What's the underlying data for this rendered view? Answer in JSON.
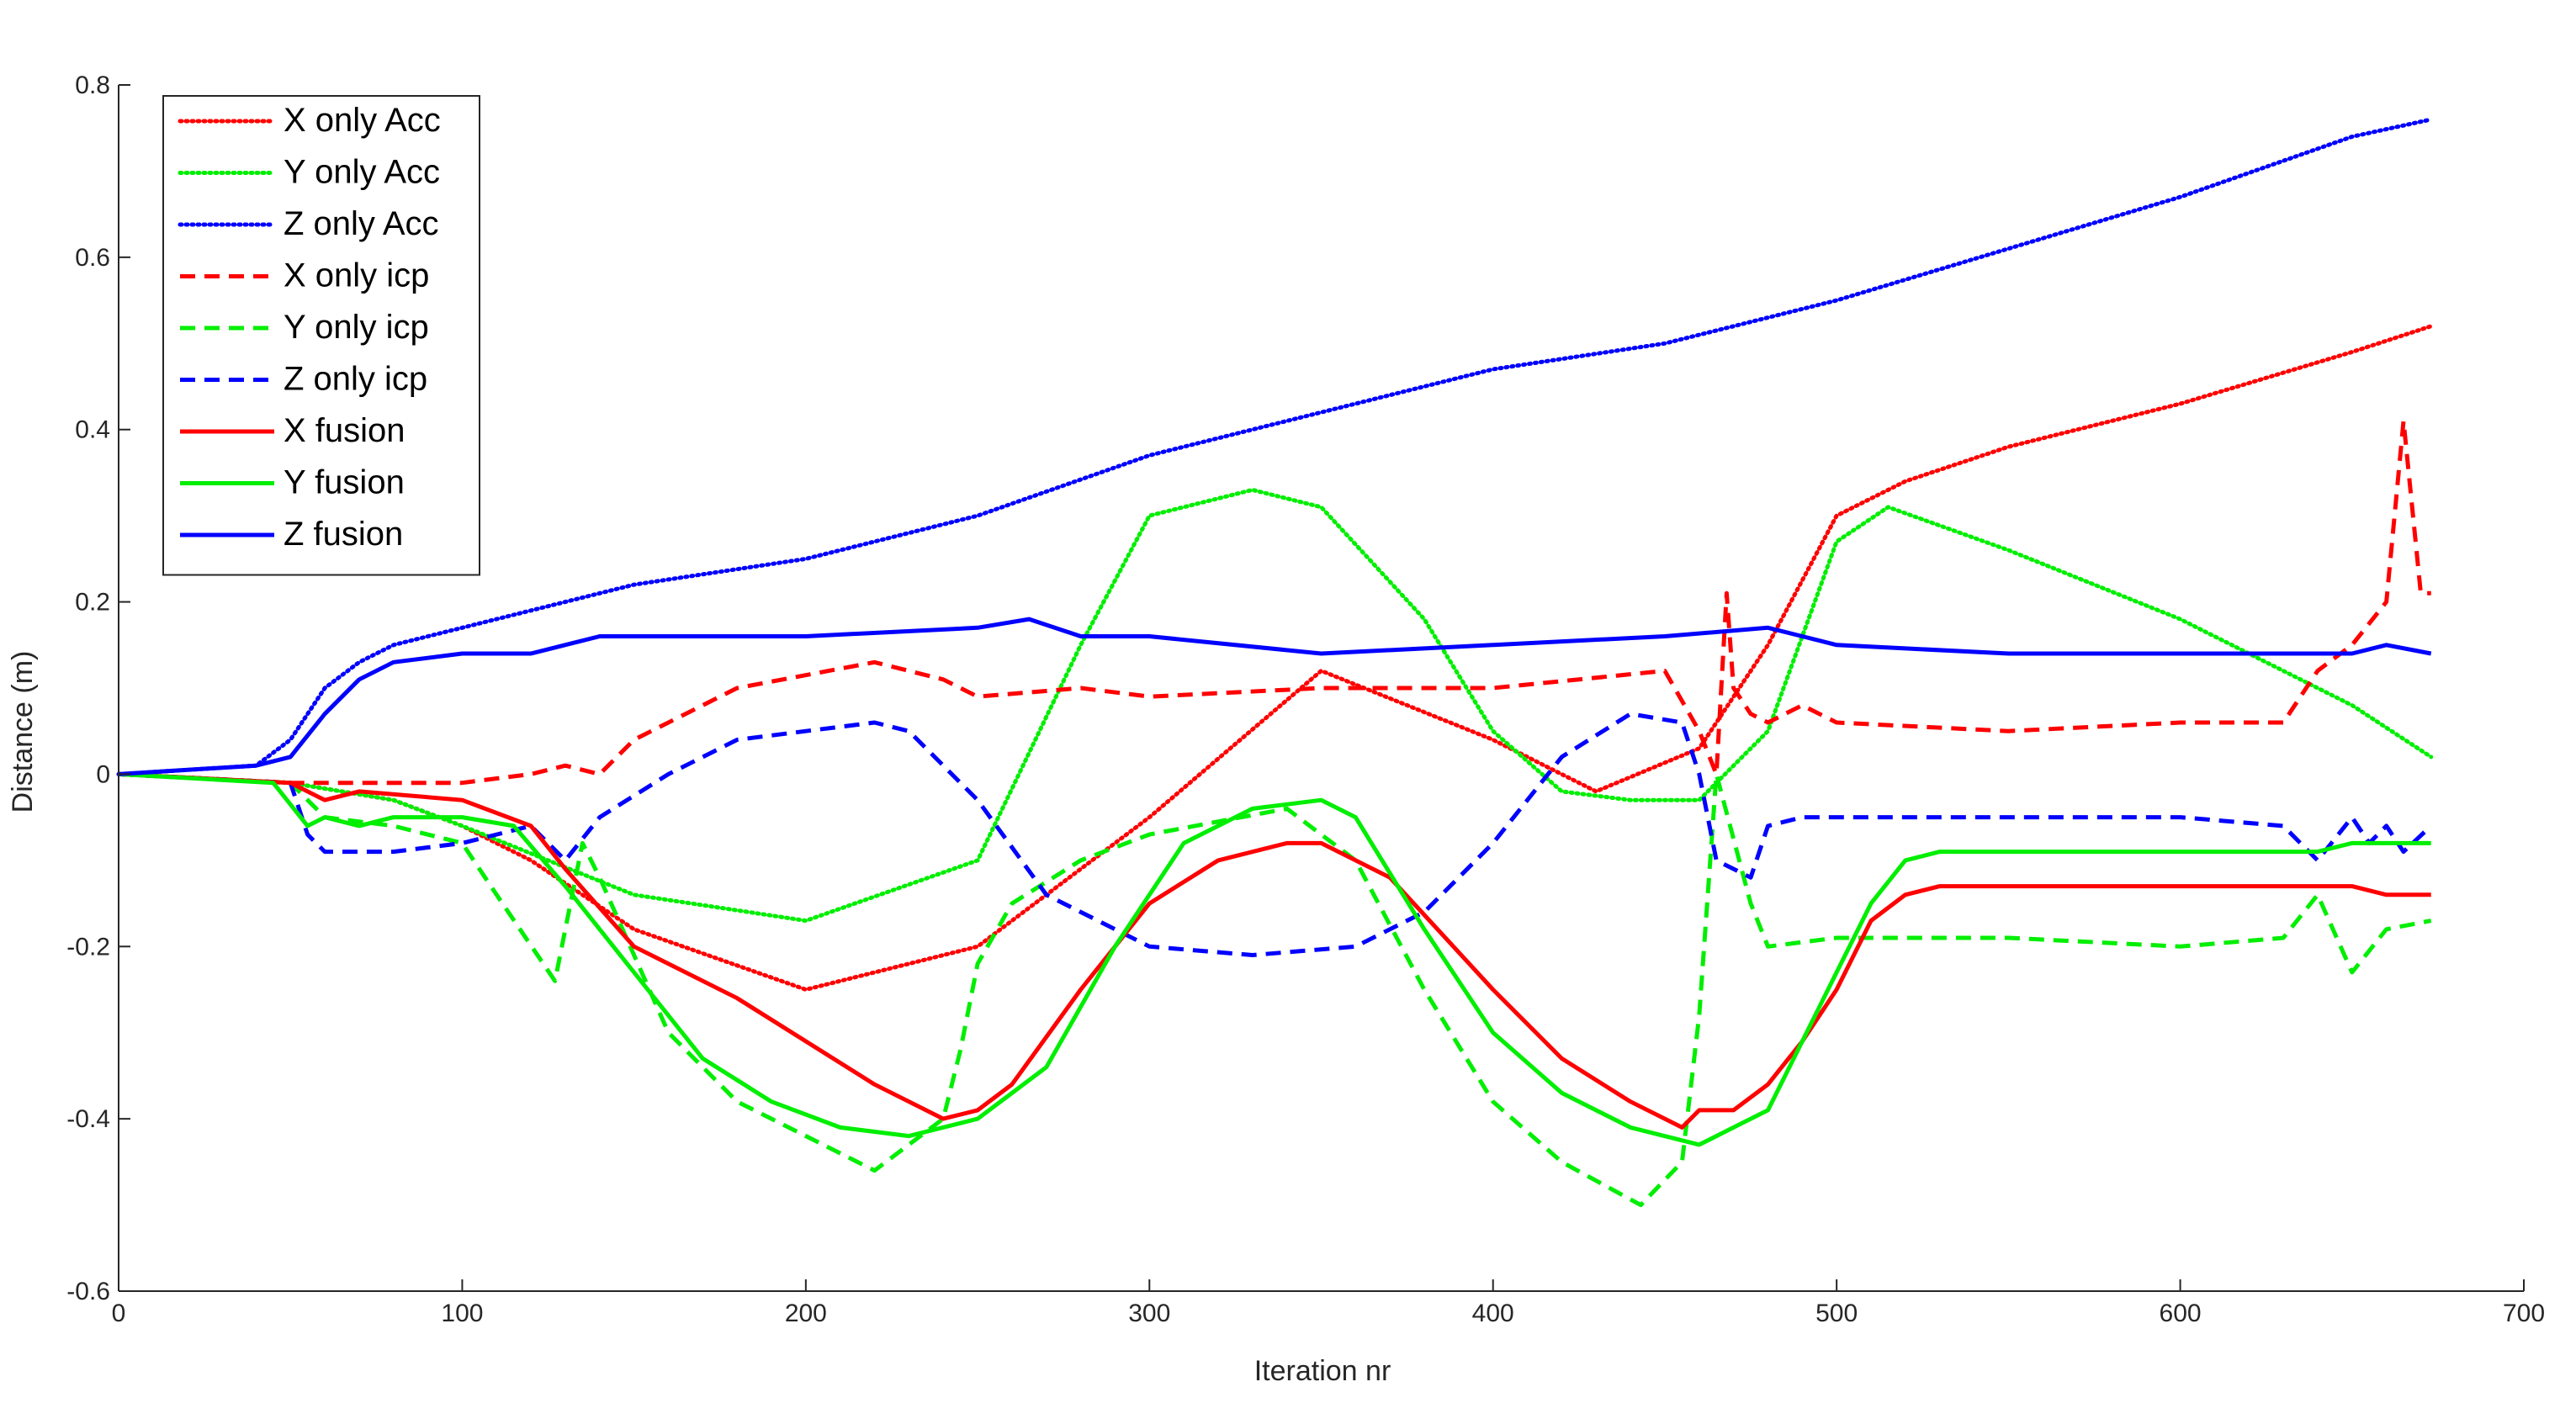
{
  "chart_data": {
    "type": "line",
    "title": "",
    "xlabel": "Iteration nr",
    "ylabel": "Distance (m)",
    "xlim": [
      0,
      700
    ],
    "ylim": [
      -0.6,
      0.8
    ],
    "x_ticks": [
      0,
      100,
      200,
      300,
      400,
      500,
      600,
      700
    ],
    "y_ticks": [
      -0.6,
      -0.4,
      -0.2,
      0,
      0.2,
      0.4,
      0.6,
      0.8
    ],
    "x_tick_labels": [
      "0",
      "100",
      "200",
      "300",
      "400",
      "500",
      "600",
      "700"
    ],
    "y_tick_labels": [
      "-0.6",
      "-0.4",
      "-0.2",
      "0",
      "0.2",
      "0.4",
      "0.6",
      "0.8"
    ],
    "grid": false,
    "legend_position": "top-left",
    "series": [
      {
        "name": "X only Acc",
        "color": "#ff0000",
        "style": "dotted",
        "x": [
          0,
          50,
          80,
          100,
          120,
          150,
          200,
          250,
          300,
          350,
          400,
          430,
          460,
          480,
          500,
          520,
          550,
          600,
          650,
          673
        ],
        "y": [
          0,
          -0.01,
          -0.03,
          -0.06,
          -0.1,
          -0.18,
          -0.25,
          -0.2,
          -0.05,
          0.12,
          0.04,
          -0.02,
          0.03,
          0.15,
          0.3,
          0.34,
          0.38,
          0.43,
          0.49,
          0.52
        ]
      },
      {
        "name": "Y only Acc",
        "color": "#00ee00",
        "style": "dotted",
        "x": [
          0,
          50,
          80,
          100,
          150,
          200,
          250,
          280,
          300,
          330,
          350,
          380,
          400,
          420,
          440,
          460,
          480,
          500,
          515,
          550,
          600,
          650,
          673
        ],
        "y": [
          0,
          -0.01,
          -0.03,
          -0.06,
          -0.14,
          -0.17,
          -0.1,
          0.15,
          0.3,
          0.33,
          0.31,
          0.18,
          0.05,
          -0.02,
          -0.03,
          -0.03,
          0.05,
          0.27,
          0.31,
          0.26,
          0.18,
          0.08,
          0.02
        ]
      },
      {
        "name": "Z only Acc",
        "color": "#0000ff",
        "style": "dotted",
        "x": [
          0,
          40,
          50,
          60,
          70,
          80,
          100,
          150,
          200,
          250,
          300,
          350,
          400,
          450,
          500,
          550,
          600,
          650,
          673
        ],
        "y": [
          0,
          0.01,
          0.04,
          0.1,
          0.13,
          0.15,
          0.17,
          0.22,
          0.25,
          0.3,
          0.37,
          0.42,
          0.47,
          0.5,
          0.55,
          0.61,
          0.67,
          0.74,
          0.76
        ]
      },
      {
        "name": "X only icp",
        "color": "#ff0000",
        "style": "dashed",
        "x": [
          0,
          50,
          100,
          120,
          130,
          140,
          150,
          180,
          220,
          240,
          250,
          280,
          300,
          350,
          400,
          450,
          460,
          465,
          468,
          470,
          475,
          480,
          490,
          500,
          550,
          600,
          630,
          640,
          650,
          660,
          665,
          670,
          673
        ],
        "y": [
          0,
          -0.01,
          -0.01,
          0.0,
          0.01,
          0.0,
          0.04,
          0.1,
          0.13,
          0.11,
          0.09,
          0.1,
          0.09,
          0.1,
          0.1,
          0.12,
          0.05,
          0.0,
          0.21,
          0.1,
          0.07,
          0.06,
          0.08,
          0.06,
          0.05,
          0.06,
          0.06,
          0.12,
          0.15,
          0.2,
          0.41,
          0.21,
          0.21
        ]
      },
      {
        "name": "Y only icp",
        "color": "#00ee00",
        "style": "dashed",
        "x": [
          0,
          50,
          60,
          80,
          100,
          110,
          127,
          135,
          140,
          160,
          180,
          200,
          220,
          240,
          245,
          250,
          260,
          280,
          300,
          340,
          360,
          380,
          400,
          420,
          443,
          455,
          460,
          465,
          475,
          480,
          500,
          550,
          600,
          630,
          640,
          650,
          660,
          673
        ],
        "y": [
          0,
          -0.01,
          -0.05,
          -0.06,
          -0.08,
          -0.14,
          -0.24,
          -0.08,
          -0.12,
          -0.3,
          -0.38,
          -0.42,
          -0.46,
          -0.4,
          -0.32,
          -0.22,
          -0.15,
          -0.1,
          -0.07,
          -0.04,
          -0.1,
          -0.25,
          -0.38,
          -0.45,
          -0.5,
          -0.45,
          -0.28,
          0.0,
          -0.15,
          -0.2,
          -0.19,
          -0.19,
          -0.2,
          -0.19,
          -0.14,
          -0.23,
          -0.18,
          -0.17
        ]
      },
      {
        "name": "Z only icp",
        "color": "#0000ff",
        "style": "dashed",
        "x": [
          0,
          50,
          55,
          60,
          80,
          100,
          120,
          130,
          140,
          160,
          180,
          200,
          220,
          230,
          250,
          270,
          300,
          330,
          360,
          380,
          400,
          420,
          440,
          455,
          460,
          465,
          475,
          480,
          490,
          550,
          600,
          630,
          640,
          650,
          655,
          660,
          665,
          673
        ],
        "y": [
          0,
          -0.01,
          -0.07,
          -0.09,
          -0.09,
          -0.08,
          -0.06,
          -0.1,
          -0.05,
          0.0,
          0.04,
          0.05,
          0.06,
          0.05,
          -0.03,
          -0.14,
          -0.2,
          -0.21,
          -0.2,
          -0.16,
          -0.08,
          0.02,
          0.07,
          0.06,
          0.0,
          -0.1,
          -0.12,
          -0.06,
          -0.05,
          -0.05,
          -0.05,
          -0.06,
          -0.1,
          -0.05,
          -0.08,
          -0.06,
          -0.09,
          -0.06
        ]
      },
      {
        "name": "X fusion",
        "color": "#ff0000",
        "style": "solid",
        "x": [
          0,
          50,
          60,
          70,
          100,
          120,
          130,
          150,
          180,
          200,
          220,
          240,
          250,
          260,
          280,
          300,
          320,
          340,
          350,
          370,
          400,
          420,
          440,
          455,
          460,
          470,
          480,
          490,
          500,
          510,
          520,
          530,
          550,
          600,
          640,
          650,
          660,
          673
        ],
        "y": [
          0,
          -0.01,
          -0.03,
          -0.02,
          -0.03,
          -0.06,
          -0.11,
          -0.2,
          -0.26,
          -0.31,
          -0.36,
          -0.4,
          -0.39,
          -0.36,
          -0.25,
          -0.15,
          -0.1,
          -0.08,
          -0.08,
          -0.12,
          -0.25,
          -0.33,
          -0.38,
          -0.41,
          -0.39,
          -0.39,
          -0.36,
          -0.31,
          -0.25,
          -0.17,
          -0.14,
          -0.13,
          -0.13,
          -0.13,
          -0.13,
          -0.13,
          -0.14,
          -0.14
        ]
      },
      {
        "name": "Y fusion",
        "color": "#00ee00",
        "style": "solid",
        "x": [
          0,
          45,
          55,
          60,
          70,
          80,
          100,
          115,
          130,
          150,
          170,
          190,
          210,
          230,
          250,
          270,
          290,
          310,
          330,
          350,
          360,
          380,
          400,
          420,
          440,
          460,
          470,
          480,
          490,
          500,
          510,
          520,
          530,
          550,
          600,
          640,
          650,
          660,
          673
        ],
        "y": [
          0,
          -0.01,
          -0.06,
          -0.05,
          -0.06,
          -0.05,
          -0.05,
          -0.06,
          -0.13,
          -0.23,
          -0.33,
          -0.38,
          -0.41,
          -0.42,
          -0.4,
          -0.34,
          -0.2,
          -0.08,
          -0.04,
          -0.03,
          -0.05,
          -0.18,
          -0.3,
          -0.37,
          -0.41,
          -0.43,
          -0.41,
          -0.39,
          -0.31,
          -0.23,
          -0.15,
          -0.1,
          -0.09,
          -0.09,
          -0.09,
          -0.09,
          -0.08,
          -0.08,
          -0.08
        ]
      },
      {
        "name": "Z fusion",
        "color": "#0000ff",
        "style": "solid",
        "x": [
          0,
          40,
          50,
          60,
          70,
          80,
          100,
          120,
          140,
          160,
          200,
          250,
          265,
          280,
          300,
          350,
          400,
          450,
          480,
          490,
          500,
          550,
          600,
          650,
          660,
          673
        ],
        "y": [
          0,
          0.01,
          0.02,
          0.07,
          0.11,
          0.13,
          0.14,
          0.14,
          0.16,
          0.16,
          0.16,
          0.17,
          0.18,
          0.16,
          0.16,
          0.14,
          0.15,
          0.16,
          0.17,
          0.16,
          0.15,
          0.14,
          0.14,
          0.14,
          0.15,
          0.14
        ]
      }
    ]
  }
}
